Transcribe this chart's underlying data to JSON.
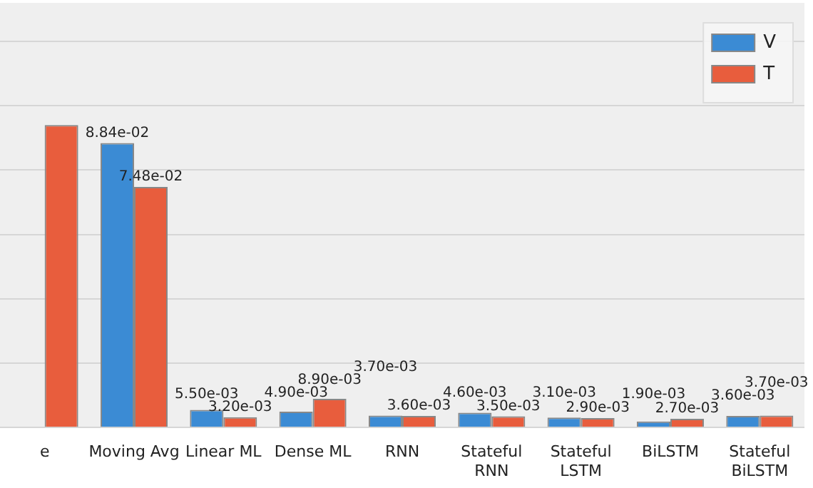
{
  "chart_data": {
    "type": "bar",
    "categories": [
      "e",
      "Moving Avg",
      "Linear ML",
      "Dense ML",
      "RNN",
      "Stateful\nRNN",
      "Stateful\nLSTM",
      "BiLSTM",
      "Stateful\nBiLSTM"
    ],
    "series": [
      {
        "name": "V",
        "color": "#3b8bd4",
        "values": [
          null,
          0.0884,
          0.0055,
          0.0049,
          0.0037,
          0.0046,
          0.0031,
          0.0019,
          0.0036
        ],
        "value_labels": [
          null,
          "8.84e-02",
          "5.50e-03",
          "4.90e-03",
          "3.70e-03",
          "4.60e-03",
          "3.10e-03",
          "1.90e-03",
          "3.60e-03"
        ]
      },
      {
        "name": "T",
        "color": "#e85d3d",
        "values": [
          0.094,
          0.0748,
          0.0032,
          0.0089,
          0.0036,
          0.0035,
          0.0029,
          0.0027,
          0.0037
        ],
        "value_labels": [
          null,
          "7.48e-02",
          "3.20e-03",
          "8.90e-03",
          "3.60e-03",
          "3.50e-03",
          "2.90e-03",
          "2.70e-03",
          "3.70e-03"
        ]
      }
    ],
    "ylim": [
      0,
      0.132
    ],
    "yticks": [
      {
        "value": 0,
        "label": null
      },
      {
        "value": 0.02,
        "label": null
      },
      {
        "value": 0.04,
        "label": null
      },
      {
        "value": 0.06,
        "label": null
      },
      {
        "value": 0.08,
        "label": null
      },
      {
        "value": 0.1,
        "label": null
      },
      {
        "value": 0.12,
        "label": null
      }
    ],
    "tick_labels": "x",
    "grid": "y",
    "legend": "top right"
  }
}
